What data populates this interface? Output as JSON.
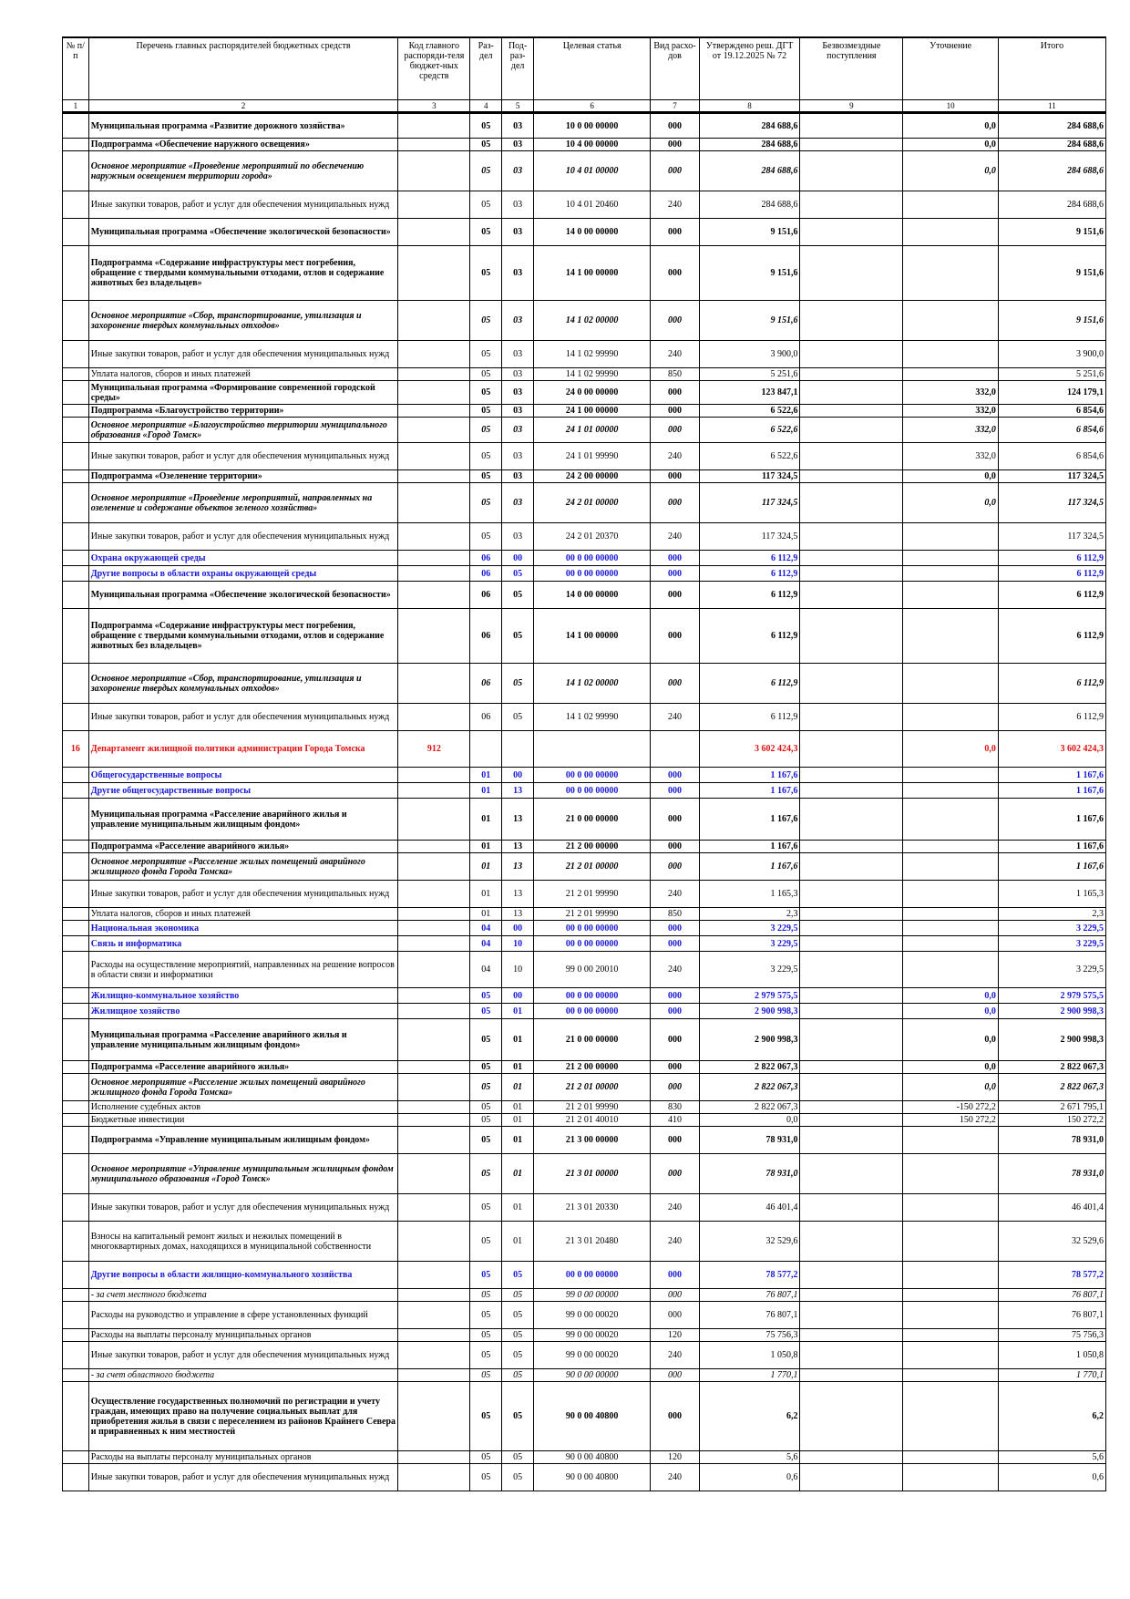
{
  "header": [
    "№ п/п",
    "Перечень главных распорядителей бюджетных средств",
    "Код главного распоряди-теля бюджет-ных средств",
    "Раз-дел",
    "Под-раз-дел",
    "Целевая статья",
    "Вид расхо-дов",
    "Утверждено реш. ДГТ от 19.12.2025 № 72",
    "Безвозмездные поступления",
    "Уточнение",
    "Итого"
  ],
  "header_numbers": [
    "1",
    "2",
    "3",
    "4",
    "5",
    "6",
    "7",
    "8",
    "9",
    "10",
    "11"
  ],
  "rows": [
    {
      "s": "b",
      "h": 28,
      "c": [
        "",
        "Муниципальная программа «Развитие дорожного хозяйства»",
        "",
        "05",
        "03",
        "10 0 00 00000",
        "000",
        "284 688,6",
        "",
        "0,0",
        "284 688,6"
      ]
    },
    {
      "s": "b",
      "h": 14,
      "c": [
        "",
        "Подпрограмма «Обеспечение наружного освещения»",
        "",
        "05",
        "03",
        "10 4 00 00000",
        "000",
        "284 688,6",
        "",
        "0,0",
        "284 688,6"
      ]
    },
    {
      "s": "bi",
      "h": 44,
      "c": [
        "",
        "Основное мероприятие «Проведение мероприятий по обеспечению наружным освещением территории города»",
        "",
        "05",
        "03",
        "10 4 01 00000",
        "000",
        "284 688,6",
        "",
        "0,0",
        "284 688,6"
      ]
    },
    {
      "s": "n",
      "h": 30,
      "c": [
        "",
        "Иные закупки товаров, работ и услуг для обеспечения муниципальных нужд",
        "",
        "05",
        "03",
        "10 4 01 20460",
        "240",
        "284 688,6",
        "",
        "",
        "284 688,6"
      ]
    },
    {
      "s": "b",
      "h": 30,
      "c": [
        "",
        "Муниципальная программа «Обеспечение экологической безопасности»",
        "",
        "05",
        "03",
        "14 0 00 00000",
        "000",
        "9 151,6",
        "",
        "",
        "9 151,6"
      ]
    },
    {
      "s": "b",
      "h": 60,
      "c": [
        "",
        "Подпрограмма «Содержание инфраструктуры мест погребения, обращение с твердыми коммунальными отходами, отлов и содержание животных без владельцев»",
        "",
        "05",
        "03",
        "14 1 00 00000",
        "000",
        "9 151,6",
        "",
        "",
        "9 151,6"
      ]
    },
    {
      "s": "bi",
      "h": 44,
      "c": [
        "",
        "Основное мероприятие «Сбор, транспортирование, утилизация и захоронение твердых коммунальных отходов»",
        "",
        "05",
        "03",
        "14 1 02 00000",
        "000",
        "9 151,6",
        "",
        "",
        "9 151,6"
      ]
    },
    {
      "s": "n",
      "h": 30,
      "c": [
        "",
        "Иные закупки товаров, работ и услуг для обеспечения муниципальных нужд",
        "",
        "05",
        "03",
        "14 1 02 99990",
        "240",
        "3 900,0",
        "",
        "",
        "3 900,0"
      ]
    },
    {
      "s": "n",
      "h": 14,
      "c": [
        "",
        "Уплата налогов, сборов и иных платежей",
        "",
        "05",
        "03",
        "14 1 02 99990",
        "850",
        "5 251,6",
        "",
        "",
        "5 251,6"
      ]
    },
    {
      "s": "b",
      "h": 26,
      "c": [
        "",
        "Муниципальная программа «Формирование современной городской среды»",
        "",
        "05",
        "03",
        "24 0 00 00000",
        "000",
        "123 847,1",
        "",
        "332,0",
        "124 179,1"
      ]
    },
    {
      "s": "b",
      "h": 14,
      "c": [
        "",
        "Подпрограмма «Благоустройство территории»",
        "",
        "05",
        "03",
        "24 1 00 00000",
        "000",
        "6 522,6",
        "",
        "332,0",
        "6 854,6"
      ]
    },
    {
      "s": "bi",
      "h": 28,
      "c": [
        "",
        "Основное мероприятие «Благоустройство территории муниципального образования «Город Томск»",
        "",
        "05",
        "03",
        "24 1 01 00000",
        "000",
        "6 522,6",
        "",
        "332,0",
        "6 854,6"
      ]
    },
    {
      "s": "n",
      "h": 30,
      "c": [
        "",
        "Иные закупки товаров, работ и услуг для обеспечения муниципальных нужд",
        "",
        "05",
        "03",
        "24 1 01 99990",
        "240",
        "6 522,6",
        "",
        "332,0",
        "6 854,6"
      ]
    },
    {
      "s": "b",
      "h": 14,
      "c": [
        "",
        "Подпрограмма «Озеленение территории»",
        "",
        "05",
        "03",
        "24 2 00 00000",
        "000",
        "117 324,5",
        "",
        "0,0",
        "117 324,5"
      ]
    },
    {
      "s": "bi",
      "h": 44,
      "c": [
        "",
        "Основное мероприятие «Проведение мероприятий, направленных на озеленение и содержание объектов зеленого хозяйства»",
        "",
        "05",
        "03",
        "24 2 01 00000",
        "000",
        "117 324,5",
        "",
        "0,0",
        "117 324,5"
      ]
    },
    {
      "s": "n",
      "h": 30,
      "c": [
        "",
        "Иные закупки товаров, работ и услуг для обеспечения муниципальных нужд",
        "",
        "05",
        "03",
        "24 2 01 20370",
        "240",
        "117 324,5",
        "",
        "",
        "117 324,5"
      ]
    },
    {
      "s": "blue",
      "h": 17,
      "c": [
        "",
        "Охрана окружающей среды",
        "",
        "06",
        "00",
        "00 0 00 00000",
        "000",
        "6 112,9",
        "",
        "",
        "6 112,9"
      ]
    },
    {
      "s": "blue",
      "h": 17,
      "c": [
        "",
        "Другие вопросы в области охраны окружающей среды",
        "",
        "06",
        "05",
        "00 0 00 00000",
        "000",
        "6 112,9",
        "",
        "",
        "6 112,9"
      ]
    },
    {
      "s": "b",
      "h": 30,
      "c": [
        "",
        "Муниципальная программа «Обеспечение экологической безопасности»",
        "",
        "06",
        "05",
        "14 0 00 00000",
        "000",
        "6 112,9",
        "",
        "",
        "6 112,9"
      ]
    },
    {
      "s": "b",
      "h": 60,
      "c": [
        "",
        "Подпрограмма «Содержание инфраструктуры мест погребения, обращение с твердыми коммунальными отходами, отлов и содержание животных без владельцев»",
        "",
        "06",
        "05",
        "14 1 00 00000",
        "000",
        "6 112,9",
        "",
        "",
        "6 112,9"
      ]
    },
    {
      "s": "bi",
      "h": 44,
      "c": [
        "",
        "Основное мероприятие «Сбор, транспортирование, утилизация и захоронение твердых коммунальных отходов»",
        "",
        "06",
        "05",
        "14 1 02 00000",
        "000",
        "6 112,9",
        "",
        "",
        "6 112,9"
      ]
    },
    {
      "s": "n",
      "h": 30,
      "c": [
        "",
        "Иные закупки товаров, работ и услуг для обеспечения муниципальных нужд",
        "",
        "06",
        "05",
        "14 1 02 99990",
        "240",
        "6 112,9",
        "",
        "",
        "6 112,9"
      ]
    },
    {
      "s": "red",
      "h": 40,
      "c": [
        "16",
        "Департамент жилищной политики администрации Города Томска",
        "912",
        "",
        "",
        "",
        "",
        "3 602 424,3",
        "",
        "0,0",
        "3 602 424,3"
      ]
    },
    {
      "s": "blue",
      "h": 17,
      "c": [
        "",
        "Общегосударственные вопросы",
        "",
        "01",
        "00",
        "00 0 00 00000",
        "000",
        "1 167,6",
        "",
        "",
        "1 167,6"
      ]
    },
    {
      "s": "blue",
      "h": 17,
      "c": [
        "",
        "Другие общегосударственные вопросы",
        "",
        "01",
        "13",
        "00 0 00 00000",
        "000",
        "1 167,6",
        "",
        "",
        "1 167,6"
      ]
    },
    {
      "s": "b",
      "h": 46,
      "c": [
        "",
        "Муниципальная программа «Расселение аварийного жилья и управление муниципальным жилищным фондом»",
        "",
        "01",
        "13",
        "21 0 00 00000",
        "000",
        "1 167,6",
        "",
        "",
        "1 167,6"
      ]
    },
    {
      "s": "b",
      "h": 14,
      "c": [
        "",
        "Подпрограмма «Расселение аварийного жилья»",
        "",
        "01",
        "13",
        "21 2 00 00000",
        "000",
        "1 167,6",
        "",
        "",
        "1 167,6"
      ]
    },
    {
      "s": "bi",
      "h": 30,
      "c": [
        "",
        "Основное мероприятие «Расселение жилых помещений аварийного жилищного фонда Города Томска»",
        "",
        "01",
        "13",
        "21 2 01 00000",
        "000",
        "1 167,6",
        "",
        "",
        "1 167,6"
      ]
    },
    {
      "s": "n",
      "h": 30,
      "c": [
        "",
        "Иные закупки товаров, работ и услуг для обеспечения муниципальных нужд",
        "",
        "01",
        "13",
        "21 2 01 99990",
        "240",
        "1 165,3",
        "",
        "",
        "1 165,3"
      ]
    },
    {
      "s": "n",
      "h": 14,
      "c": [
        "",
        "Уплата налогов, сборов и иных платежей",
        "",
        "01",
        "13",
        "21 2 01 99990",
        "850",
        "2,3",
        "",
        "",
        "2,3"
      ]
    },
    {
      "s": "blue",
      "h": 17,
      "c": [
        "",
        "Национальная экономика",
        "",
        "04",
        "00",
        "00 0 00 00000",
        "000",
        "3 229,5",
        "",
        "",
        "3 229,5"
      ]
    },
    {
      "s": "blue",
      "h": 17,
      "c": [
        "",
        "Связь и информатика",
        "",
        "04",
        "10",
        "00 0 00 00000",
        "000",
        "3 229,5",
        "",
        "",
        "3 229,5"
      ]
    },
    {
      "s": "n2",
      "h": 40,
      "c": [
        "",
        "Расходы на осуществление мероприятий, направленных на решение вопросов в области связи и информатики",
        "",
        "04",
        "10",
        "99 0 00 20010",
        "240",
        "3 229,5",
        "",
        "",
        "3 229,5"
      ]
    },
    {
      "s": "blue",
      "h": 17,
      "c": [
        "",
        "Жилищно-коммунальное хозяйство",
        "",
        "05",
        "00",
        "00 0 00 00000",
        "000",
        "2 979 575,5",
        "",
        "0,0",
        "2 979 575,5"
      ]
    },
    {
      "s": "blue",
      "h": 17,
      "c": [
        "",
        "Жилищное хозяйство",
        "",
        "05",
        "01",
        "00 0 00 00000",
        "000",
        "2 900 998,3",
        "",
        "0,0",
        "2 900 998,3"
      ]
    },
    {
      "s": "b",
      "h": 46,
      "c": [
        "",
        "Муниципальная программа «Расселение аварийного жилья и управление муниципальным жилищным фондом»",
        "",
        "05",
        "01",
        "21 0 00 00000",
        "000",
        "2 900 998,3",
        "",
        "0,0",
        "2 900 998,3"
      ]
    },
    {
      "s": "b",
      "h": 14,
      "c": [
        "",
        "Подпрограмма «Расселение аварийного жилья»",
        "",
        "05",
        "01",
        "21 2 00 00000",
        "000",
        "2 822 067,3",
        "",
        "0,0",
        "2 822 067,3"
      ]
    },
    {
      "s": "bi",
      "h": 30,
      "c": [
        "",
        "Основное мероприятие «Расселение жилых помещений аварийного жилищного фонда Города Томска»",
        "",
        "05",
        "01",
        "21 2 01 00000",
        "000",
        "2 822 067,3",
        "",
        "0,0",
        "2 822 067,3"
      ]
    },
    {
      "s": "n",
      "h": 14,
      "c": [
        "",
        "Исполнение судебных актов",
        "",
        "05",
        "01",
        "21 2 01 99990",
        "830",
        "2 822 067,3",
        "",
        "-150 272,2",
        "2 671 795,1"
      ]
    },
    {
      "s": "n",
      "h": 14,
      "c": [
        "",
        "Бюджетные инвестиции",
        "",
        "05",
        "01",
        "21 2 01 40010",
        "410",
        "0,0",
        "",
        "150 272,2",
        "150 272,2"
      ]
    },
    {
      "s": "b",
      "h": 30,
      "c": [
        "",
        "Подпрограмма «Управление муниципальным жилищным фондом»",
        "",
        "05",
        "01",
        "21 3 00 00000",
        "000",
        "78 931,0",
        "",
        "",
        "78 931,0"
      ]
    },
    {
      "s": "bi",
      "h": 44,
      "c": [
        "",
        "Основное мероприятие «Управление муниципальным жилищным фондом муниципального образования «Город Томск»",
        "",
        "05",
        "01",
        "21 3 01 00000",
        "000",
        "78 931,0",
        "",
        "",
        "78 931,0"
      ]
    },
    {
      "s": "n",
      "h": 30,
      "c": [
        "",
        "Иные закупки товаров, работ и услуг для обеспечения муниципальных нужд",
        "",
        "05",
        "01",
        "21 3 01 20330",
        "240",
        "46 401,4",
        "",
        "",
        "46 401,4"
      ]
    },
    {
      "s": "n3",
      "h": 44,
      "c": [
        "",
        "Взносы на капитальный ремонт жилых и нежилых помещений в многоквартирных домах, находящихся в муниципальной собственности",
        "",
        "05",
        "01",
        "21 3 01 20480",
        "240",
        "32 529,6",
        "",
        "",
        "32 529,6"
      ]
    },
    {
      "s": "blue",
      "h": 30,
      "c": [
        "",
        "Другие вопросы в области жилищно-коммунального хозяйства",
        "",
        "05",
        "05",
        "00 0 00 00000",
        "000",
        "78 577,2",
        "",
        "",
        "78 577,2"
      ]
    },
    {
      "s": "i",
      "h": 14,
      "c": [
        "",
        "- за счет местного бюджета",
        "",
        "05",
        "05",
        "99 0 00 00000",
        "000",
        "76 807,1",
        "",
        "",
        "76 807,1"
      ]
    },
    {
      "s": "n",
      "h": 30,
      "c": [
        "",
        "Расходы на руководство и управление в сфере установленных функций",
        "",
        "05",
        "05",
        "99 0 00 00020",
        "000",
        "76 807,1",
        "",
        "",
        "76 807,1"
      ]
    },
    {
      "s": "n",
      "h": 14,
      "c": [
        "",
        "Расходы на выплаты персоналу муниципальных органов",
        "",
        "05",
        "05",
        "99 0 00 00020",
        "120",
        "75 756,3",
        "",
        "",
        "75 756,3"
      ]
    },
    {
      "s": "n",
      "h": 30,
      "c": [
        "",
        "Иные закупки товаров, работ и услуг для обеспечения муниципальных нужд",
        "",
        "05",
        "05",
        "99 0 00 00020",
        "240",
        "1 050,8",
        "",
        "",
        "1 050,8"
      ]
    },
    {
      "s": "i",
      "h": 14,
      "c": [
        "",
        "- за счет областного бюджета",
        "",
        "05",
        "05",
        "90 0 00 00000",
        "000",
        "1 770,1",
        "",
        "",
        "1 770,1"
      ]
    },
    {
      "s": "b",
      "h": 76,
      "c": [
        "",
        "Осуществление государственных полномочий по регистрации и учету граждан, имеющих право на получение социальных выплат для приобретения жилья в связи с переселением из районов Крайнего Севера и приравненных к ним местностей",
        "",
        "05",
        "05",
        "90 0 00 40800",
        "000",
        "6,2",
        "",
        "",
        "6,2"
      ]
    },
    {
      "s": "n",
      "h": 14,
      "c": [
        "",
        "Расходы на выплаты персоналу муниципальных органов",
        "",
        "05",
        "05",
        "90 0 00 40800",
        "120",
        "5,6",
        "",
        "",
        "5,6"
      ]
    },
    {
      "s": "n",
      "h": 30,
      "c": [
        "",
        "Иные закупки товаров, работ и услуг для обеспечения муниципальных нужд",
        "",
        "05",
        "05",
        "90 0 00 40800",
        "240",
        "0,6",
        "",
        "",
        "0,6"
      ]
    }
  ]
}
